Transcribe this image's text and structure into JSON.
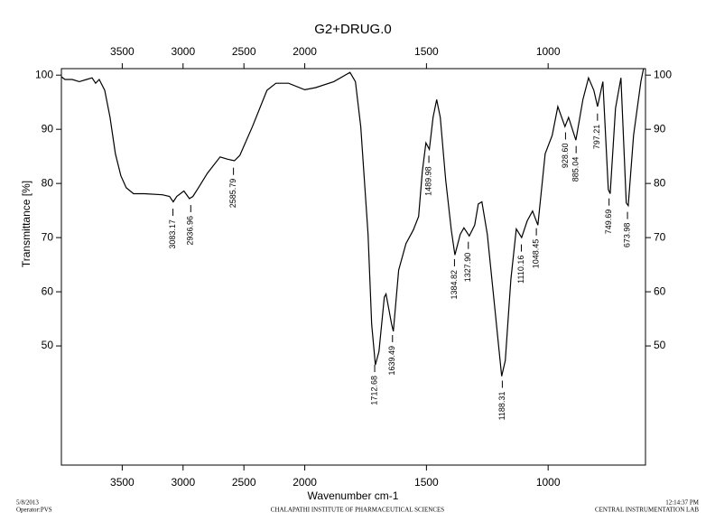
{
  "chart_data": {
    "type": "line",
    "title": "G2+DRUG.0",
    "x_label": "Wavenumber cm-1",
    "y_label": "Transmittance [%]",
    "xlim": [
      4000,
      600
    ],
    "x_scale_break": 2000,
    "x_scale_factor": 2,
    "xticks": [
      3500,
      3000,
      2500,
      2000,
      1500,
      1000
    ],
    "ylim": [
      28,
      101.2
    ],
    "yticks": [
      50,
      60,
      70,
      80,
      90,
      100
    ],
    "color": "#000000",
    "x": [
      4000,
      3970,
      3911,
      3852,
      3793,
      3748,
      3719,
      3689,
      3644,
      3600,
      3556,
      3511,
      3467,
      3407,
      3319,
      3170,
      3111,
      3081,
      3052,
      2993,
      2948,
      2919,
      2874,
      2800,
      2696,
      2637,
      2578,
      2533,
      2430,
      2311,
      2237,
      2133,
      2000,
      1955,
      1881,
      1814,
      1792,
      1770,
      1740,
      1725,
      1710,
      1695,
      1673,
      1666,
      1643,
      1636,
      1614,
      1584,
      1554,
      1532,
      1517,
      1502,
      1488,
      1473,
      1458,
      1443,
      1421,
      1398,
      1383,
      1361,
      1346,
      1324,
      1302,
      1287,
      1272,
      1250,
      1220,
      1191,
      1176,
      1153,
      1131,
      1109,
      1086,
      1064,
      1042,
      1012,
      983,
      960,
      931,
      916,
      886,
      857,
      834,
      812,
      797,
      775,
      753,
      745,
      723,
      701,
      679,
      671,
      649,
      619,
      608
    ],
    "values": [
      99.7,
      99.2,
      99.2,
      98.8,
      99.2,
      99.5,
      98.5,
      99.2,
      97.2,
      92.2,
      85.5,
      81.4,
      79.2,
      78.1,
      78.1,
      77.9,
      77.6,
      76.6,
      77.6,
      78.6,
      77.2,
      77.6,
      79.2,
      81.9,
      84.9,
      84.5,
      84.2,
      85.2,
      90.5,
      97.2,
      98.5,
      98.5,
      97.3,
      97.7,
      98.8,
      100.5,
      98.8,
      90.5,
      70.6,
      54,
      46.5,
      49,
      59,
      59.6,
      54,
      52.7,
      64,
      68.9,
      71.4,
      73.9,
      82.2,
      87.5,
      86.3,
      92.2,
      95.5,
      92.2,
      80.6,
      71.4,
      66.8,
      70.6,
      71.8,
      70.3,
      72.3,
      76.2,
      76.6,
      70.6,
      57.3,
      44.4,
      47.3,
      62.3,
      71.6,
      70,
      73.1,
      74.9,
      72.3,
      85.5,
      88.9,
      94.2,
      90.5,
      92.2,
      88,
      95.5,
      99.5,
      97.2,
      94.2,
      98.8,
      78.9,
      78.1,
      93.9,
      99.5,
      76.4,
      75.9,
      88.9,
      98.8,
      101.2
    ],
    "peaks": [
      {
        "value": 3083.17,
        "label": "3083.17"
      },
      {
        "value": 2936.96,
        "label": "2936.96"
      },
      {
        "value": 2585.79,
        "label": "2585.79"
      },
      {
        "value": 1712.68,
        "label": "1712.68"
      },
      {
        "value": 1639.49,
        "label": "1639.49"
      },
      {
        "value": 1489.98,
        "label": "1489.98"
      },
      {
        "value": 1384.82,
        "label": "1384.82"
      },
      {
        "value": 1327.9,
        "label": "1327.90"
      },
      {
        "value": 1188.31,
        "label": "1188.31"
      },
      {
        "value": 1110.16,
        "label": "1110.16"
      },
      {
        "value": 1048.45,
        "label": "1048.45"
      },
      {
        "value": 928.6,
        "label": "928.60"
      },
      {
        "value": 885.04,
        "label": "885.04"
      },
      {
        "value": 797.21,
        "label": "797.21"
      },
      {
        "value": 749.69,
        "label": "749.69"
      },
      {
        "value": 673.98,
        "label": "673.98"
      }
    ],
    "footer": {
      "date": "5/8/2013",
      "operator": "Operator:PVS",
      "institute": "CHALAPATHI INSTITUTE OF PHARMACEUTICAL SCIENCES",
      "time": "12:14:37 PM",
      "lab": "CENTRAL INSTRUMENTATION LAB"
    }
  }
}
